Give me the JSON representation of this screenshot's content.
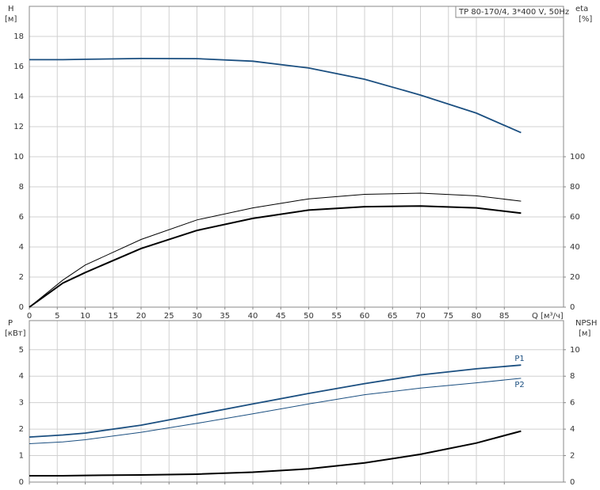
{
  "chart_data": [
    {
      "type": "line",
      "title": "TP 80-170/4, 3*400 V, 50Hz",
      "ylabel": "H",
      "yunit": "[м]",
      "y2label": "eta",
      "y2unit": "[%]",
      "xlabel": "Q [м³/ч]",
      "x": [
        0,
        6,
        10,
        20,
        30,
        40,
        50,
        60,
        70,
        80,
        88
      ],
      "xlim": [
        0,
        95.6
      ],
      "xticks": [
        0,
        5,
        10,
        15,
        20,
        25,
        30,
        35,
        40,
        45,
        50,
        55,
        60,
        65,
        70,
        75,
        80,
        85
      ],
      "ylim": [
        0,
        20
      ],
      "yticks": [
        0,
        2,
        4,
        6,
        8,
        10,
        12,
        14,
        16,
        18
      ],
      "y2lim": [
        0,
        200
      ],
      "y2ticks": [
        0,
        20,
        40,
        60,
        80,
        100
      ],
      "grid": true,
      "series": [
        {
          "color": "#1b4f80",
          "values": [
            16.45,
            16.45,
            16.48,
            16.53,
            16.52,
            16.35,
            15.9,
            15.15,
            14.1,
            12.9,
            11.6
          ]
        },
        {
          "color": "#000000",
          "axis": "y2",
          "values": [
            0,
            18,
            28,
            45,
            58,
            66,
            72,
            75,
            75.8,
            74,
            70.5
          ]
        },
        {
          "color": "#000000",
          "axis": "y2",
          "values": [
            0,
            16,
            23,
            39,
            51,
            59,
            64.5,
            66.8,
            67.2,
            66,
            62.5
          ]
        }
      ]
    },
    {
      "type": "line",
      "ylabel": "P",
      "yunit": "[кВт]",
      "y2label": "NPSH",
      "y2unit": "[м]",
      "x": [
        0,
        6,
        10,
        20,
        30,
        40,
        50,
        60,
        70,
        80,
        88
      ],
      "xlim": [
        0,
        95.6
      ],
      "xticks": [
        0,
        5,
        10,
        15,
        20,
        25,
        30,
        35,
        40,
        45,
        50,
        55,
        60,
        65,
        70,
        75,
        80,
        85
      ],
      "ylim": [
        0,
        6.1
      ],
      "yticks": [
        0,
        1,
        2,
        3,
        4,
        5
      ],
      "y2lim": [
        0,
        12.2
      ],
      "y2ticks": [
        0,
        2,
        4,
        6,
        8,
        10
      ],
      "grid": true,
      "series": [
        {
          "name": "P1",
          "color": "#1b4f80",
          "values": [
            1.7,
            1.78,
            1.85,
            2.15,
            2.55,
            2.95,
            3.35,
            3.72,
            4.05,
            4.28,
            4.42
          ]
        },
        {
          "name": "P2",
          "color": "#1b4f80",
          "values": [
            1.45,
            1.52,
            1.6,
            1.88,
            2.22,
            2.58,
            2.95,
            3.3,
            3.55,
            3.75,
            3.92
          ]
        },
        {
          "color": "#000000",
          "axis": "y2",
          "values": [
            0.48,
            0.48,
            0.5,
            0.54,
            0.6,
            0.75,
            1.0,
            1.45,
            2.1,
            2.95,
            3.85
          ]
        }
      ]
    }
  ]
}
